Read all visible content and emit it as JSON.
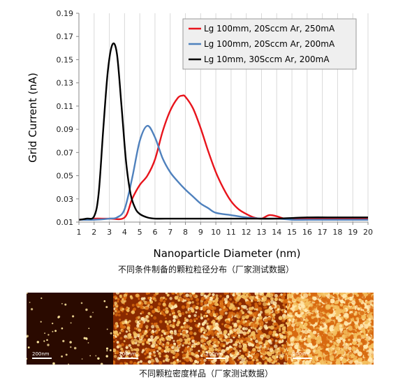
{
  "chart_data": {
    "type": "line",
    "xlabel": "Nanoparticle Diameter (nm)",
    "ylabel": "Grid Current (nA)",
    "xlim": [
      1,
      20
    ],
    "ylim": [
      0.01,
      0.19
    ],
    "xticks": [
      1,
      2,
      3,
      4,
      5,
      6,
      7,
      8,
      9,
      10,
      11,
      12,
      13,
      14,
      15,
      16,
      17,
      18,
      19,
      20
    ],
    "yticks": [
      "0.01",
      "0.03",
      "0.05",
      "0.07",
      "0.09",
      "0.11",
      "0.13",
      "0.15",
      "0.17",
      "0.19"
    ],
    "grid": "vertical",
    "legend_position": "top-right",
    "series": [
      {
        "name": "Lg 100mm, 20Sccm Ar, 250mA",
        "color": "#e8141c",
        "x": [
          1,
          2,
          3,
          4,
          4.5,
          5,
          5.5,
          6,
          6.5,
          7,
          7.5,
          7.8,
          8,
          8.5,
          9,
          9.5,
          10,
          10.5,
          11,
          11.5,
          12,
          12.5,
          13,
          13.5,
          14,
          14.5,
          15,
          16,
          17,
          18,
          19,
          20
        ],
        "y": [
          0.012,
          0.013,
          0.013,
          0.014,
          0.03,
          0.042,
          0.05,
          0.064,
          0.088,
          0.106,
          0.117,
          0.119,
          0.118,
          0.108,
          0.091,
          0.071,
          0.053,
          0.039,
          0.028,
          0.021,
          0.017,
          0.014,
          0.013,
          0.016,
          0.015,
          0.013,
          0.013,
          0.013,
          0.013,
          0.013,
          0.013,
          0.013
        ]
      },
      {
        "name": "Lg 100mm, 20Sccm Ar, 200mA",
        "color": "#4f81bd",
        "x": [
          1,
          2,
          3,
          3.5,
          4,
          4.5,
          5,
          5.5,
          6,
          6.5,
          7,
          7.5,
          8,
          8.5,
          9,
          9.5,
          10,
          11,
          12,
          13,
          14,
          15,
          16,
          17,
          18,
          19,
          20
        ],
        "y": [
          0.012,
          0.012,
          0.013,
          0.014,
          0.021,
          0.048,
          0.08,
          0.093,
          0.083,
          0.065,
          0.053,
          0.045,
          0.038,
          0.032,
          0.026,
          0.022,
          0.018,
          0.016,
          0.014,
          0.013,
          0.013,
          0.012,
          0.012,
          0.012,
          0.012,
          0.012,
          0.012
        ]
      },
      {
        "name": "Lg 10mm, 30Sccm Ar, 200mA",
        "color": "#000000",
        "x": [
          1,
          1.5,
          2,
          2.3,
          2.6,
          2.9,
          3.2,
          3.5,
          3.8,
          4.1,
          4.4,
          4.7,
          5,
          5.5,
          6,
          7,
          8,
          10,
          12,
          14,
          16,
          18,
          20
        ],
        "y": [
          0.012,
          0.013,
          0.015,
          0.035,
          0.09,
          0.14,
          0.163,
          0.155,
          0.11,
          0.062,
          0.034,
          0.022,
          0.017,
          0.014,
          0.013,
          0.013,
          0.013,
          0.013,
          0.013,
          0.013,
          0.014,
          0.014,
          0.014
        ]
      }
    ]
  },
  "captions": {
    "size_distribution": "不同条件制备的颗粒粒径分布（厂家测试数据）",
    "density_samples": "不同颗粒密度样品（厂家测试数据）"
  },
  "afm_images": {
    "scale_labels": [
      "200nm",
      "200nm",
      "200nm",
      "200nm"
    ],
    "particle_densities": [
      "low",
      "medium",
      "high",
      "very high"
    ],
    "colormap": [
      "#2a0a00",
      "#8a2a00",
      "#d86a10",
      "#f4c060"
    ]
  }
}
